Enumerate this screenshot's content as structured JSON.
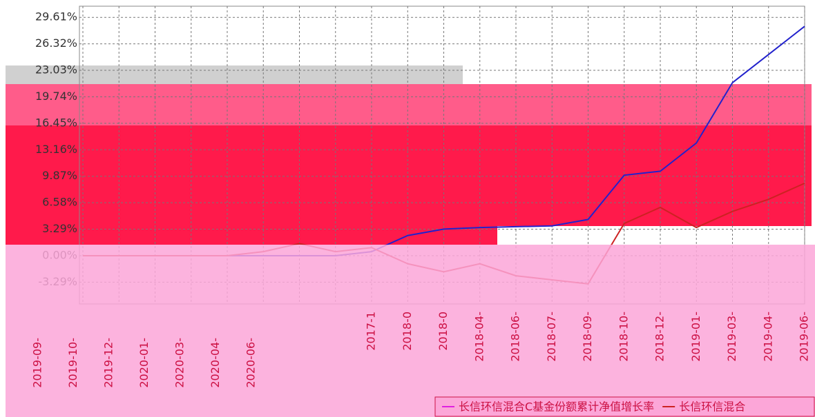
{
  "chart_data": {
    "type": "line",
    "categories": [
      null,
      null,
      null,
      null,
      null,
      null,
      null,
      null,
      "2017-1",
      "2018-0",
      "2018-0",
      "2018-04-",
      "2018-06-",
      "2018-07-",
      "2018-09-",
      "2018-10-",
      "2018-12-",
      "2019-01-",
      "2019-03-",
      "2019-04-",
      "2019-06-"
    ],
    "series": [
      {
        "name": "长信环信混合C基金份额累计净值增长率",
        "color": "#2222cc",
        "values": [
          0,
          0,
          0,
          0,
          0,
          0,
          0,
          0,
          0.5,
          2.5,
          3.3,
          3.5,
          3.6,
          3.7,
          4.5,
          10,
          10.5,
          14,
          21.5,
          25,
          28.5
        ]
      },
      {
        "name": "长信环信混合",
        "color": "#cc2222",
        "values": [
          0,
          0,
          0,
          0,
          0,
          0.5,
          1.5,
          0.5,
          1,
          -1,
          -2,
          -1,
          -2.5,
          -3,
          -3.5,
          4,
          6,
          3.5,
          5.5,
          7,
          9
        ]
      }
    ],
    "ylim": [
      -6,
      31
    ],
    "yticks": [
      {
        "value": 29.61,
        "label": "29.61%"
      },
      {
        "value": 26.32,
        "label": "26.32%"
      },
      {
        "value": 23.03,
        "label": "23.03%"
      },
      {
        "value": 19.74,
        "label": "19.74%"
      },
      {
        "value": 16.45,
        "label": "16.45%"
      },
      {
        "value": 13.16,
        "label": "13.16%"
      },
      {
        "value": 9.87,
        "label": "9.87%"
      },
      {
        "value": 6.58,
        "label": "6.58%"
      },
      {
        "value": 3.29,
        "label": "3.29%"
      },
      {
        "value": 0,
        "label": "0.00%"
      },
      {
        "value": -3.29,
        "label": "-3.29%"
      }
    ],
    "grid": true,
    "overlay_x_labels": [
      "2019-09-",
      "2019-10-",
      "2019-12-",
      "2020-01-",
      "2020-03-",
      "2020-04-",
      "2020-06-"
    ]
  }
}
